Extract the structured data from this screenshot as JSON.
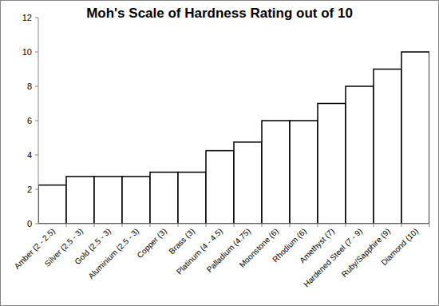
{
  "chart_data": {
    "type": "bar",
    "title": "Moh's Scale of Hardness Rating out of 10",
    "categories": [
      "Amber (2 - 2.5)",
      "Silver (2.5 - 3)",
      "Gold (2.5 - 3)",
      "Aluminium (2.5 - 3)",
      "Copper (3)",
      "Brass (3)",
      "Platinum (4 - 4.5)",
      "Palladium (4.75)",
      "Moonstone (6)",
      "Rhodium (6)",
      "Amethyst (7)",
      "Hardened Steel (7 - 9)",
      "Ruby/Sapphire (9)",
      "Diamond (10)"
    ],
    "values": [
      2.25,
      2.75,
      2.75,
      2.75,
      3,
      3,
      4.25,
      4.75,
      6,
      6,
      7,
      8,
      9,
      10
    ],
    "color": "#ffffff",
    "ylim": [
      0,
      12
    ],
    "yticks": [
      0,
      2,
      4,
      6,
      8,
      10,
      12
    ],
    "grid": false
  }
}
